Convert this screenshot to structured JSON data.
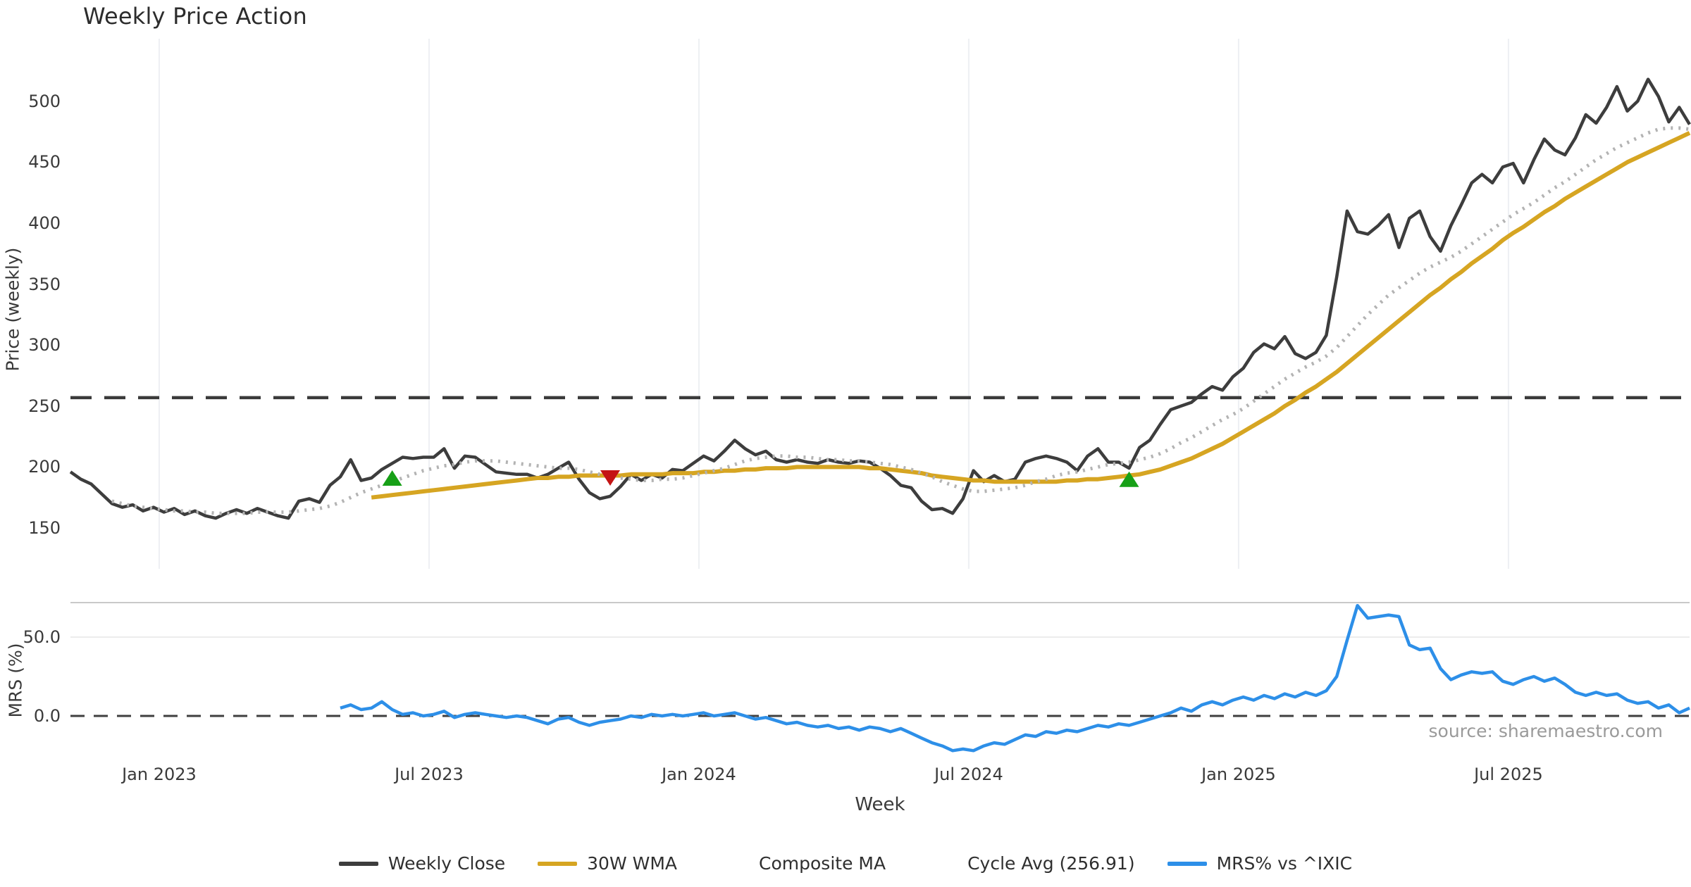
{
  "title": "Weekly Price Action",
  "source": "source: sharemaestro.com",
  "axes": {
    "price_label": "Price (weekly)",
    "mrs_label": "MRS (%)",
    "x_label": "Week"
  },
  "legend": [
    {
      "label": "Weekly Close",
      "style": "solid",
      "color": "#3d3d3d"
    },
    {
      "label": "30W WMA",
      "style": "solid",
      "color": "#d6a522"
    },
    {
      "label": "Composite MA",
      "style": "dotted",
      "color": "#b3b3b3"
    },
    {
      "label": "Cycle Avg (256.91)",
      "style": "dashed",
      "color": "#3a3a3a"
    },
    {
      "label": "MRS% vs ^IXIC",
      "style": "solid",
      "color": "#2d8fe8"
    }
  ],
  "chart_data": {
    "type": "line",
    "title": "Weekly Price Action",
    "xlabel": "Week",
    "x_unit": "week_index",
    "x_tick_labels": [
      "Jan 2023",
      "Jul 2023",
      "Jan 2024",
      "Jul 2024",
      "Jan 2025",
      "Jul 2025"
    ],
    "x_tick_weeks": [
      8.55,
      34.55,
      60.55,
      86.55,
      112.55,
      138.55
    ],
    "panels": [
      {
        "id": "price",
        "ylabel": "Price (weekly)",
        "ylim": [
          140,
          525
        ],
        "yticks": [
          150,
          200,
          250,
          300,
          350,
          400,
          450,
          500
        ],
        "grid": "vertical-only"
      },
      {
        "id": "mrs",
        "ylabel": "MRS (%)",
        "ylim": [
          -28,
          78
        ],
        "yticks": [
          0.0,
          50.0
        ],
        "zero_line": true
      }
    ],
    "cycle_avg": 256.91,
    "legend_position": "bottom-center",
    "series": [
      {
        "name": "Weekly Close",
        "panel": "price",
        "style": "solid",
        "color": "#3d3d3d",
        "start_week": 0,
        "values": [
          196,
          190,
          186,
          178,
          170,
          167,
          169,
          164,
          167,
          163,
          166,
          161,
          164,
          160,
          158,
          162,
          165,
          162,
          166,
          163,
          160,
          158,
          172,
          174,
          171,
          185,
          192,
          206,
          189,
          191,
          198,
          203,
          208,
          207,
          208,
          208,
          215,
          199,
          209,
          208,
          202,
          196,
          195,
          194,
          194,
          191,
          194,
          199,
          204,
          190,
          179,
          174,
          176,
          184,
          194,
          189,
          194,
          191,
          198,
          197,
          203,
          209,
          205,
          213,
          222,
          215,
          210,
          213,
          206,
          204,
          206,
          204,
          203,
          206,
          204,
          203,
          205,
          204,
          199,
          193,
          185,
          183,
          172,
          165,
          166,
          162,
          174,
          197,
          188,
          193,
          188,
          190,
          204,
          207,
          209,
          207,
          204,
          197,
          209,
          215,
          204,
          204,
          199,
          216,
          222,
          235,
          247,
          250,
          253,
          260,
          266,
          263,
          274,
          281,
          294,
          301,
          297,
          307,
          293,
          289,
          294,
          308,
          356,
          410,
          393,
          391,
          398,
          407,
          380,
          404,
          410,
          389,
          377,
          398,
          415,
          433,
          440,
          433,
          446,
          449,
          433,
          452,
          469,
          460,
          456,
          470,
          489,
          482,
          495,
          512,
          492,
          500,
          518,
          504,
          483,
          495,
          481
        ]
      },
      {
        "name": "30W WMA",
        "panel": "price",
        "style": "solid",
        "color": "#d6a522",
        "start_week": 29,
        "values": [
          175,
          176,
          177,
          178,
          179,
          180,
          181,
          182,
          183,
          184,
          185,
          186,
          187,
          188,
          189,
          190,
          191,
          191,
          192,
          192,
          193,
          193,
          193,
          193,
          193,
          194,
          194,
          194,
          194,
          195,
          195,
          195,
          196,
          196,
          197,
          197,
          198,
          198,
          199,
          199,
          199,
          200,
          200,
          200,
          200,
          200,
          200,
          200,
          199,
          199,
          198,
          197,
          196,
          195,
          193,
          192,
          191,
          190,
          189,
          189,
          188,
          188,
          188,
          188,
          188,
          188,
          188,
          189,
          189,
          190,
          190,
          191,
          192,
          193,
          194,
          196,
          198,
          201,
          204,
          207,
          211,
          215,
          219,
          224,
          229,
          234,
          239,
          244,
          250,
          255,
          261,
          266,
          272,
          278,
          285,
          292,
          299,
          306,
          313,
          320,
          327,
          334,
          341,
          347,
          354,
          360,
          367,
          373,
          379,
          386,
          392,
          397,
          403,
          409,
          414,
          420,
          425,
          430,
          435,
          440,
          445,
          450,
          454,
          458,
          462,
          466,
          470,
          474
        ]
      },
      {
        "name": "Composite MA",
        "panel": "price",
        "style": "dotted",
        "color": "#b3b3b3",
        "start_week": 4,
        "values": [
          172,
          170,
          168,
          167,
          166,
          165,
          164,
          164,
          163,
          163,
          162,
          162,
          162,
          162,
          163,
          163,
          163,
          163,
          164,
          165,
          166,
          168,
          171,
          175,
          179,
          182,
          185,
          188,
          191,
          194,
          197,
          199,
          201,
          202,
          204,
          205,
          205,
          205,
          204,
          203,
          202,
          201,
          200,
          199,
          199,
          198,
          196,
          194,
          192,
          191,
          190,
          189,
          189,
          190,
          190,
          191,
          193,
          195,
          197,
          199,
          202,
          205,
          207,
          208,
          209,
          209,
          208,
          208,
          207,
          206,
          206,
          205,
          205,
          204,
          203,
          202,
          200,
          198,
          195,
          192,
          188,
          185,
          182,
          180,
          180,
          181,
          182,
          183,
          185,
          188,
          190,
          193,
          195,
          196,
          198,
          200,
          202,
          203,
          204,
          206,
          208,
          211,
          215,
          220,
          224,
          229,
          234,
          239,
          243,
          248,
          254,
          260,
          266,
          272,
          277,
          282,
          286,
          291,
          298,
          307,
          316,
          325,
          333,
          341,
          347,
          353,
          359,
          364,
          368,
          372,
          377,
          383,
          389,
          395,
          401,
          407,
          412,
          417,
          423,
          429,
          434,
          440,
          446,
          452,
          457,
          462,
          466,
          470,
          474,
          477,
          478,
          478,
          477
        ]
      },
      {
        "name": "MRS% vs ^IXIC",
        "panel": "mrs",
        "style": "solid",
        "color": "#2d8fe8",
        "start_week": 26,
        "values": [
          5,
          7,
          4,
          5,
          9,
          4,
          1,
          2,
          0,
          1,
          3,
          -1,
          1,
          2,
          1,
          0,
          -1,
          0,
          -1,
          -3,
          -5,
          -2,
          -1,
          -4,
          -6,
          -4,
          -3,
          -2,
          0,
          -1,
          1,
          0,
          1,
          0,
          1,
          2,
          0,
          1,
          2,
          0,
          -2,
          -1,
          -3,
          -5,
          -4,
          -6,
          -7,
          -6,
          -8,
          -7,
          -9,
          -7,
          -8,
          -10,
          -8,
          -11,
          -14,
          -17,
          -19,
          -22,
          -21,
          -22,
          -19,
          -17,
          -18,
          -15,
          -12,
          -13,
          -10,
          -11,
          -9,
          -10,
          -8,
          -6,
          -7,
          -5,
          -6,
          -4,
          -2,
          0,
          2,
          5,
          3,
          7,
          9,
          7,
          10,
          12,
          10,
          13,
          11,
          14,
          12,
          15,
          13,
          16,
          25,
          48,
          70,
          62,
          63,
          64,
          63,
          45,
          42,
          43,
          30,
          23,
          26,
          28,
          27,
          28,
          22,
          20,
          23,
          25,
          22,
          24,
          20,
          15,
          13,
          15,
          13,
          14,
          10,
          8,
          9,
          5,
          7,
          2,
          5
        ]
      }
    ],
    "markers": [
      {
        "type": "buy",
        "shape": "triangle-up",
        "color": "#17a017",
        "week": 31,
        "price": 191
      },
      {
        "type": "sell",
        "shape": "triangle-down",
        "color": "#c41414",
        "week": 52,
        "price": 191
      },
      {
        "type": "buy",
        "shape": "triangle-up",
        "color": "#17a017",
        "week": 102,
        "price": 190
      }
    ]
  }
}
